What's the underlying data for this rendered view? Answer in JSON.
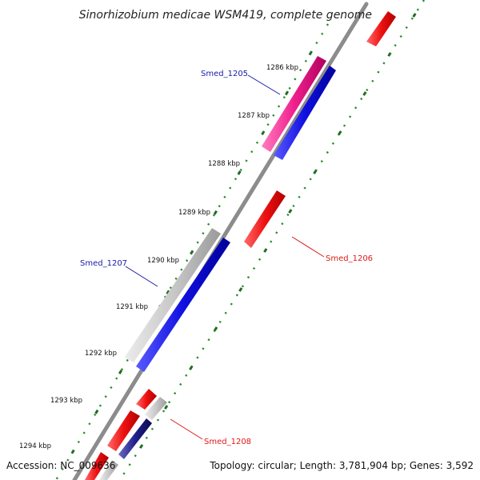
{
  "title": "Sinorhizobium medicae WSM419, complete genome",
  "footer": {
    "accession": "Accession: NC_009636",
    "summary": "Topology: circular; Length: 3,781,904 bp; Genes: 3,592"
  },
  "ticks": [
    "1286 kbp",
    "1287 kbp",
    "1288 kbp",
    "1289 kbp",
    "1290 kbp",
    "1291 kbp",
    "1292 kbp",
    "1293 kbp",
    "1294 kbp"
  ],
  "gene_labels": {
    "smed_1205": "Smed_1205",
    "smed_1206": "Smed_1206",
    "smed_1207": "Smed_1207",
    "smed_1208": "Smed_1208"
  },
  "colors": {
    "backbone": "#8c8c8c",
    "tick_dots": "#2a8a2a",
    "gene_red": "#ee1111",
    "gene_blue": "#1010e0",
    "gene_magenta": "#f0208e",
    "gene_gray": "#bdbdbd",
    "label_blue": "#1a1aa8",
    "label_red": "#e01818"
  }
}
